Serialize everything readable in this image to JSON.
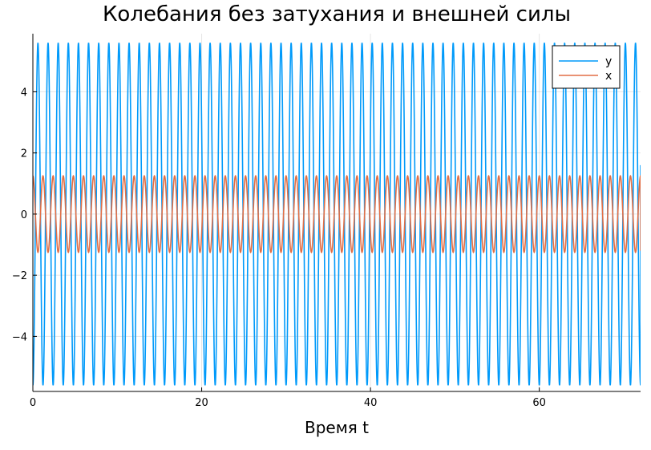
{
  "chart_data": {
    "type": "line",
    "title": "Колебания без затухания и внешней силы",
    "xlabel": "Время t",
    "ylabel": "",
    "xlim": [
      0,
      72
    ],
    "ylim": [
      -5.8,
      5.9
    ],
    "xticks": [
      0,
      20,
      40,
      60
    ],
    "yticks": [
      -4,
      -2,
      0,
      2,
      4
    ],
    "xtick_labels": [
      "0",
      "20",
      "40",
      "60"
    ],
    "ytick_labels": [
      "−4",
      "−2",
      "0",
      "2",
      "4"
    ],
    "grid": true,
    "legend_position": "top-right",
    "series": [
      {
        "name": "y",
        "color": "#009AFA",
        "kind": "sinusoid",
        "amplitude": 5.6,
        "period": 1.2,
        "phase_value_at_0": -5.6,
        "x_end": 72,
        "y_end": 1.6
      },
      {
        "name": "x",
        "color": "#E26F46",
        "kind": "sinusoid",
        "amplitude": 1.25,
        "period": 1.2,
        "phase_value_at_0": 1.25,
        "x_end": 72,
        "y_end": -1.2
      }
    ]
  }
}
